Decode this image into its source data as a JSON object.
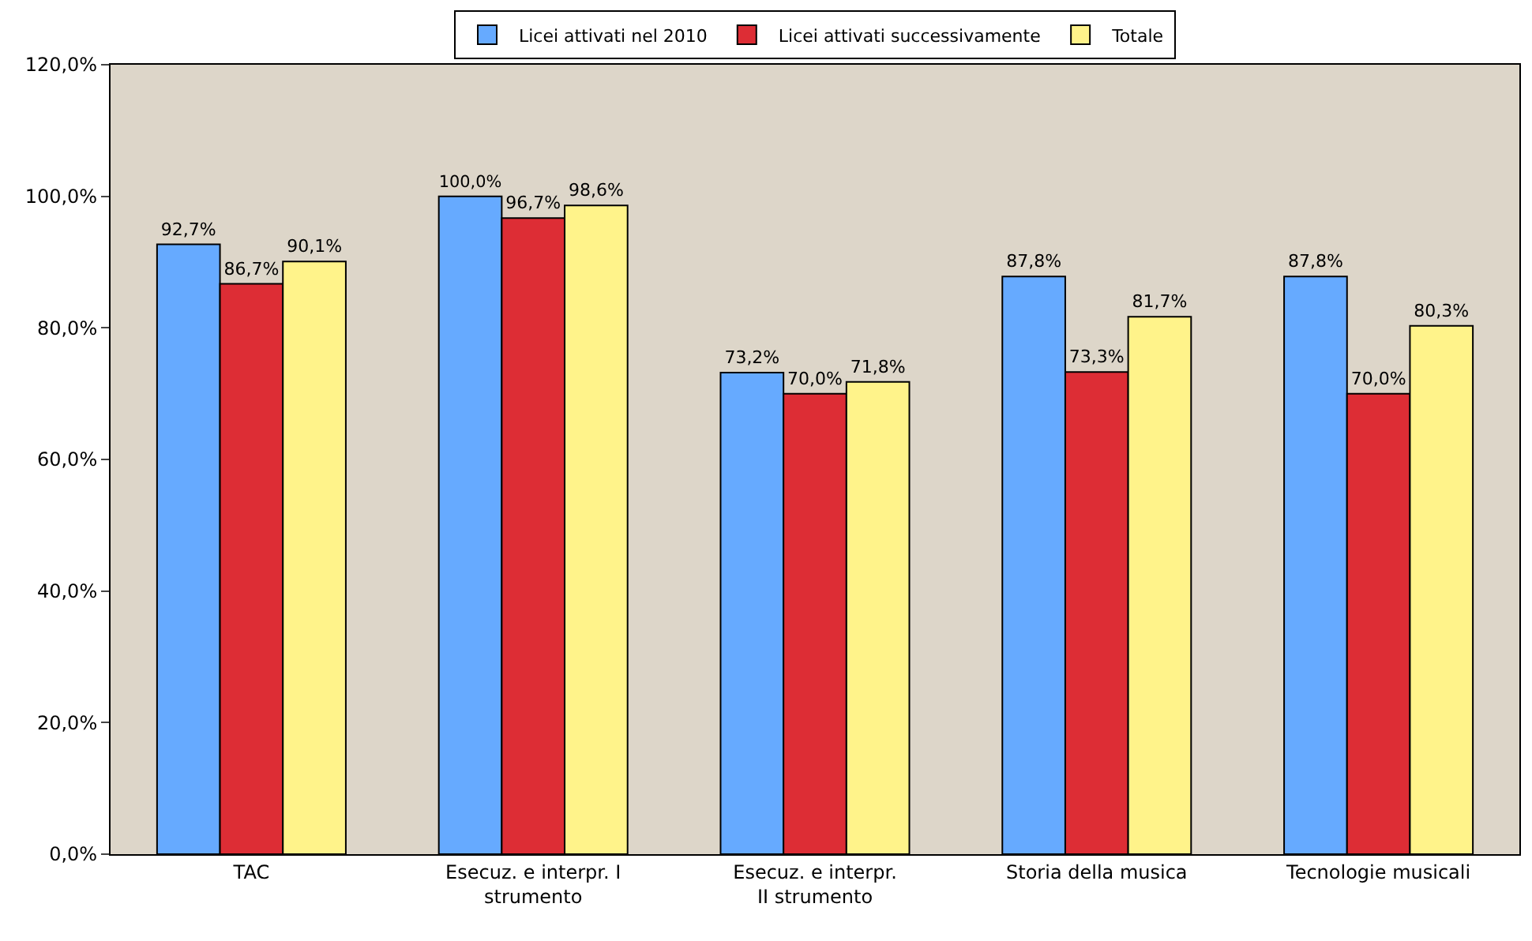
{
  "chart_data": {
    "type": "bar",
    "categories": [
      "TAC",
      "Esecuz. e interpr. I strumento",
      "Esecuz. e interpr. II strumento",
      "Storia della musica",
      "Tecnologie musicali"
    ],
    "series": [
      {
        "name": "Licei attivati nel 2010",
        "color": "#66aaff",
        "values": [
          92.7,
          100.0,
          73.2,
          87.8,
          87.8
        ],
        "value_labels": [
          "92,7%",
          "100,0%",
          "73,2%",
          "87,8%",
          "87,8%"
        ]
      },
      {
        "name": "Licei attivati successivamente",
        "color": "#dd2d35",
        "values": [
          86.7,
          96.7,
          70.0,
          73.3,
          70.0
        ],
        "value_labels": [
          "86,7%",
          "96,7%",
          "70,0%",
          "73,3%",
          "70,0%"
        ]
      },
      {
        "name": "Totale",
        "color": "#fff38a",
        "values": [
          90.1,
          98.6,
          71.8,
          81.7,
          80.3
        ],
        "value_labels": [
          "90,1%",
          "98,6%",
          "71,8%",
          "81,7%",
          "80,3%"
        ]
      }
    ],
    "ylim": [
      0,
      120
    ],
    "yticks": [
      {
        "value": 0,
        "label": "0,0%"
      },
      {
        "value": 20,
        "label": "20,0%"
      },
      {
        "value": 40,
        "label": "40,0%"
      },
      {
        "value": 60,
        "label": "60,0%"
      },
      {
        "value": 80,
        "label": "80,0%"
      },
      {
        "value": 100,
        "label": "100,0%"
      },
      {
        "value": 120,
        "label": "120,0%"
      }
    ],
    "grid": false,
    "legend": "top"
  }
}
